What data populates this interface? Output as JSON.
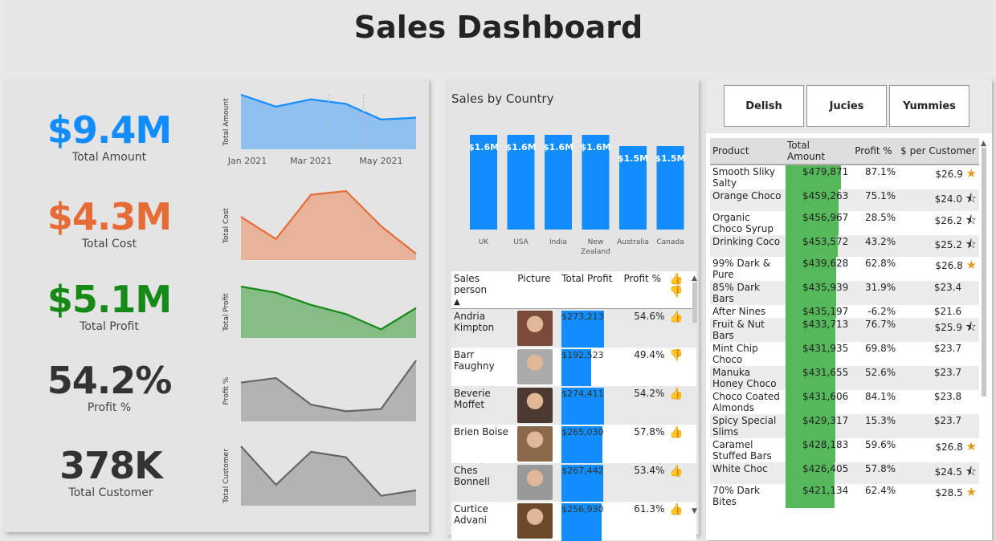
{
  "title": "Sales Dashboard",
  "kpis": [
    {
      "value": "$9.4M",
      "label": "Total Amount",
      "color": "#118dff"
    },
    {
      "value": "$4.3M",
      "label": "Total Cost",
      "color": "#e66c37"
    },
    {
      "value": "$5.1M",
      "label": "Total Profit",
      "color": "#168a16"
    },
    {
      "value": "54.2%",
      "label": "Profit %",
      "color": "#333333"
    },
    {
      "value": "378K",
      "label": "Total Customer",
      "color": "#333333"
    }
  ],
  "sparklines": {
    "amount": {
      "ylabel": "Total Amount",
      "x_ticks": [
        "Jan 2021",
        "Mar 2021",
        "May 2021"
      ],
      "values": [
        1.65,
        1.52,
        1.6,
        1.55,
        1.38,
        1.4
      ],
      "color": "#118dff",
      "fill": "#8fc0ef"
    },
    "cost": {
      "ylabel": "Total Cost",
      "values": [
        0.72,
        0.6,
        0.84,
        0.86,
        0.67,
        0.52
      ],
      "color": "#e66c37",
      "fill": "#e8b39b"
    },
    "profit": {
      "ylabel": "Total Profit",
      "values": [
        0.93,
        0.91,
        0.87,
        0.84,
        0.79,
        0.86
      ],
      "color": "#168a16",
      "fill": "#86bc86"
    },
    "profit_pct": {
      "ylabel": "Profit %",
      "values": [
        0.55,
        0.56,
        0.5,
        0.485,
        0.49,
        0.6
      ],
      "color": "#666666",
      "fill": "#b3b3b3"
    },
    "customer": {
      "ylabel": "Total Customer",
      "values": [
        63,
        56,
        62,
        61,
        54,
        55
      ],
      "color": "#666666",
      "fill": "#b3b3b3"
    }
  },
  "chart_data": {
    "type": "bar",
    "title": "Sales by Country",
    "categories": [
      "UK",
      "USA",
      "India",
      "New Zealand",
      "Australia",
      "Canada"
    ],
    "values": [
      1.6,
      1.6,
      1.6,
      1.6,
      1.5,
      1.5
    ],
    "labels": [
      "$1.6M",
      "$1.6M",
      "$1.6M",
      "$1.6M",
      "$1.5M",
      "$1.5M"
    ],
    "color": "#118dff"
  },
  "salesperson_table": {
    "headers": {
      "name": "Sales person",
      "picture": "Picture",
      "profit": "Total Profit",
      "pct": "Profit %"
    },
    "rows": [
      {
        "name": "Andria Kimpton",
        "profit": "$273,213",
        "profit_value": 273213,
        "pct": "54.6%",
        "thumb": "up"
      },
      {
        "name": "Barr Faughny",
        "profit": "$192,523",
        "profit_value": 192523,
        "pct": "49.4%",
        "thumb": "down"
      },
      {
        "name": "Beverie Moffet",
        "profit": "$274,411",
        "profit_value": 274411,
        "pct": "54.2%",
        "thumb": "up"
      },
      {
        "name": "Brien Boise",
        "profit": "$265,030",
        "profit_value": 265030,
        "pct": "57.8%",
        "thumb": "up"
      },
      {
        "name": "Ches Bonnell",
        "profit": "$267,442",
        "profit_value": 267442,
        "pct": "53.4%",
        "thumb": "up"
      },
      {
        "name": "Curtice Advani",
        "profit": "$256,930",
        "profit_value": 256930,
        "pct": "61.3%",
        "thumb": "up"
      }
    ]
  },
  "slicer_buttons": [
    "Delish",
    "Jucies",
    "Yummies"
  ],
  "product_table": {
    "headers": {
      "product": "Product",
      "amount": "Total Amount",
      "pct": "Profit %",
      "per_customer": "$ per Customer"
    },
    "rows": [
      {
        "product": "Smooth Sliky Salty",
        "amount": "$479,871",
        "amount_value": 479871,
        "pct": "87.1%",
        "per_customer": "$26.9",
        "star": "full"
      },
      {
        "product": "Orange Choco",
        "amount": "$459,263",
        "amount_value": 459263,
        "pct": "75.1%",
        "per_customer": "$24.0",
        "star": "half"
      },
      {
        "product": "Organic Choco Syrup",
        "amount": "$456,967",
        "amount_value": 456967,
        "pct": "28.5%",
        "per_customer": "$26.2",
        "star": "half"
      },
      {
        "product": "Drinking Coco",
        "amount": "$453,572",
        "amount_value": 453572,
        "pct": "43.2%",
        "per_customer": "$25.2",
        "star": "half"
      },
      {
        "product": "99% Dark & Pure",
        "amount": "$439,628",
        "amount_value": 439628,
        "pct": "62.8%",
        "per_customer": "$26.8",
        "star": "full"
      },
      {
        "product": "85% Dark Bars",
        "amount": "$435,939",
        "amount_value": 435939,
        "pct": "31.9%",
        "per_customer": "$23.4",
        "star": "none"
      },
      {
        "product": "After Nines",
        "amount": "$435,197",
        "amount_value": 435197,
        "pct": "-6.2%",
        "per_customer": "$21.6",
        "star": "none"
      },
      {
        "product": "Fruit & Nut Bars",
        "amount": "$433,713",
        "amount_value": 433713,
        "pct": "76.7%",
        "per_customer": "$25.9",
        "star": "half"
      },
      {
        "product": "Mint Chip Choco",
        "amount": "$431,935",
        "amount_value": 431935,
        "pct": "69.8%",
        "per_customer": "$23.7",
        "star": "none"
      },
      {
        "product": "Manuka Honey Choco",
        "amount": "$431,655",
        "amount_value": 431655,
        "pct": "52.6%",
        "per_customer": "$23.7",
        "star": "none"
      },
      {
        "product": "Choco Coated Almonds",
        "amount": "$431,606",
        "amount_value": 431606,
        "pct": "84.1%",
        "per_customer": "$23.8",
        "star": "none"
      },
      {
        "product": "Spicy Special Slims",
        "amount": "$429,317",
        "amount_value": 429317,
        "pct": "15.3%",
        "per_customer": "$23.7",
        "star": "none"
      },
      {
        "product": "Caramel Stuffed Bars",
        "amount": "$428,183",
        "amount_value": 428183,
        "pct": "59.6%",
        "per_customer": "$26.8",
        "star": "full"
      },
      {
        "product": "White Choc",
        "amount": "$426,405",
        "amount_value": 426405,
        "pct": "57.8%",
        "per_customer": "$24.5",
        "star": "half"
      },
      {
        "product": "70% Dark Bites",
        "amount": "$421,134",
        "amount_value": 421134,
        "pct": "62.4%",
        "per_customer": "$28.5",
        "star": "full"
      }
    ]
  }
}
